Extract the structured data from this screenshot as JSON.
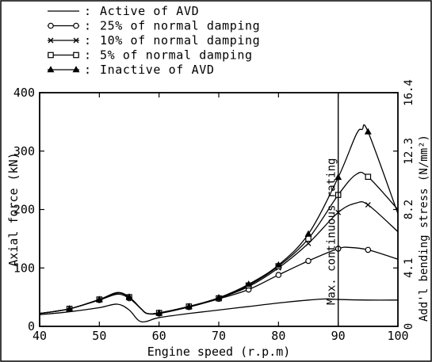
{
  "chart_data": {
    "type": "line",
    "xlabel": "Engine speed (r.p.m)",
    "ylabel": "Axial force (kN)",
    "y2label": "Add'l bending stress (N/mm²)",
    "xlim": [
      40,
      100
    ],
    "ylim": [
      0,
      400
    ],
    "xticks": [
      40,
      50,
      60,
      70,
      80,
      90,
      100
    ],
    "yticks": [
      0,
      100,
      200,
      300,
      400
    ],
    "y2ticks": [
      {
        "label": "0",
        "value": 0
      },
      {
        "label": "4.1",
        "value": 100
      },
      {
        "label": "8.2",
        "value": 200
      },
      {
        "label": "12.3",
        "value": 300
      },
      {
        "label": "16.4",
        "value": 400
      }
    ],
    "grid": false,
    "legend_position": "top-left, outside plot",
    "annotation": {
      "text": "Max. continuous rating",
      "x": 90
    },
    "series": [
      {
        "name": "Active of AVD",
        "marker": "none",
        "x": [
          40,
          45,
          50,
          53,
          55,
          57,
          60,
          65,
          70,
          75,
          80,
          85,
          88,
          90,
          95,
          100
        ],
        "y": [
          20,
          25,
          32,
          38,
          28,
          8,
          15,
          22,
          28,
          34,
          40,
          45,
          47,
          46,
          45,
          45
        ],
        "marker_x": []
      },
      {
        "name": "25% of normal damping",
        "marker": "circle",
        "x": [
          40,
          45,
          50,
          53,
          55,
          57,
          58,
          60,
          65,
          70,
          75,
          80,
          85,
          90,
          92,
          95,
          100
        ],
        "y": [
          22,
          30,
          45,
          55,
          48,
          30,
          22,
          22,
          33,
          47,
          63,
          88,
          112,
          133,
          135,
          131,
          115
        ],
        "marker_x": [
          45,
          50,
          55,
          60,
          65,
          70,
          75,
          80,
          85,
          90,
          95
        ]
      },
      {
        "name": "10% of normal damping",
        "marker": "x",
        "x": [
          40,
          45,
          50,
          53,
          55,
          57,
          58,
          60,
          65,
          70,
          75,
          80,
          85,
          90,
          93,
          95,
          100
        ],
        "y": [
          22,
          30,
          46,
          57,
          50,
          30,
          22,
          23,
          34,
          48,
          68,
          100,
          142,
          195,
          211,
          208,
          162
        ],
        "marker_x": [
          45,
          50,
          55,
          60,
          65,
          70,
          75,
          80,
          85,
          90,
          95
        ]
      },
      {
        "name": "5% of normal damping",
        "marker": "square",
        "x": [
          40,
          45,
          50,
          53,
          55,
          57,
          58,
          60,
          65,
          70,
          75,
          80,
          85,
          90,
          93,
          95,
          100
        ],
        "y": [
          22,
          30,
          46,
          57,
          50,
          30,
          22,
          23,
          34,
          48,
          70,
          103,
          150,
          225,
          260,
          256,
          200
        ],
        "marker_x": [
          45,
          50,
          55,
          60,
          65,
          70,
          75,
          80,
          85,
          90,
          95
        ]
      },
      {
        "name": "Inactive of AVD",
        "marker": "triangle",
        "x": [
          40,
          45,
          50,
          53,
          55,
          57,
          58,
          60,
          65,
          70,
          75,
          80,
          85,
          90,
          93,
          94,
          95,
          100
        ],
        "y": [
          22,
          30,
          46,
          58,
          50,
          30,
          22,
          23,
          34,
          49,
          72,
          105,
          158,
          255,
          328,
          337,
          333,
          193
        ],
        "marker_x": [
          45,
          50,
          55,
          60,
          65,
          70,
          75,
          80,
          85,
          90,
          95
        ]
      }
    ]
  }
}
